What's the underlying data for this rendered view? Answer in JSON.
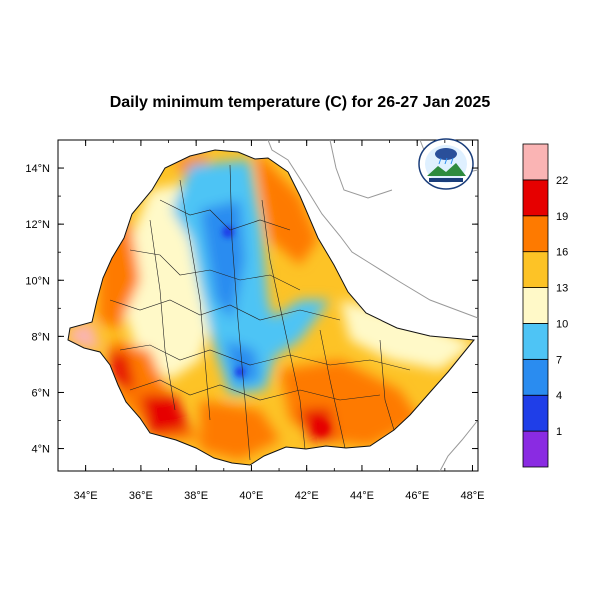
{
  "title": "Daily minimum temperature (C) for 26-27 Jan 2025",
  "map": {
    "lon_range": [
      33,
      48.2
    ],
    "lat_range": [
      3.2,
      15
    ],
    "lon_ticks": [
      "34°E",
      "36°E",
      "38°E",
      "40°E",
      "42°E",
      "44°E",
      "46°E",
      "48°E"
    ],
    "lat_ticks": [
      "4°N",
      "6°N",
      "8°N",
      "10°N",
      "12°N",
      "14°N"
    ],
    "logo_icon": "ethiopian-meteorology-institute-logo"
  },
  "colorbar": {
    "colors": [
      "#8a2be2",
      "#1f3ee8",
      "#2a8cf0",
      "#4ec4f5",
      "#fff9c8",
      "#fdc326",
      "#fe7a00",
      "#e60000",
      "#fab4b4"
    ],
    "levels": [
      "1",
      "4",
      "7",
      "10",
      "13",
      "16",
      "19",
      "22"
    ]
  }
}
